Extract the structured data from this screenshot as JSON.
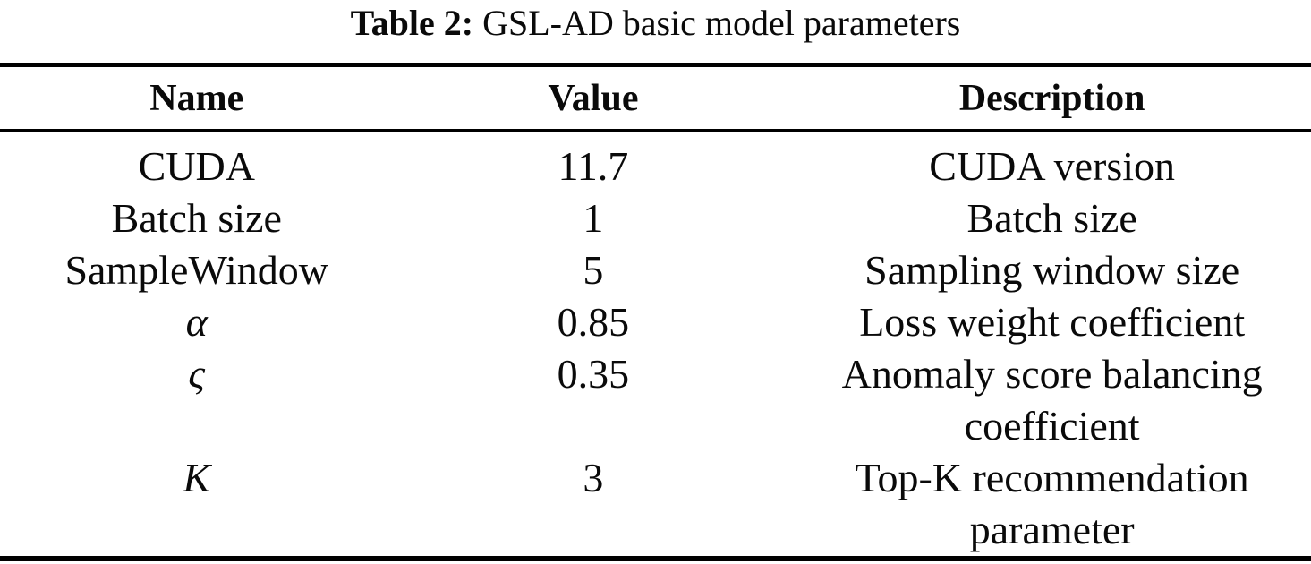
{
  "caption": {
    "label": "Table 2:",
    "text": " GSL-AD basic model parameters"
  },
  "table": {
    "columns": [
      "Name",
      "Value",
      "Description"
    ],
    "rows": [
      {
        "name": "CUDA",
        "value": "11.7",
        "description": "CUDA version"
      },
      {
        "name": "Batch size",
        "value": "1",
        "description": "Batch size"
      },
      {
        "name": "SampleWindow",
        "value": "5",
        "description": "Sampling window size"
      },
      {
        "name": "α",
        "value": "0.85",
        "description": "Loss weight coefficient"
      },
      {
        "name": "ς",
        "value": "0.35",
        "description": "Anomaly score balancing\ncoefficient"
      },
      {
        "name": "K",
        "value": "3",
        "description": "Top-K recommendation\nparameter"
      }
    ]
  },
  "colors": {
    "text": "#0a0a0a",
    "rule": "#000000",
    "background": "#ffffff"
  }
}
